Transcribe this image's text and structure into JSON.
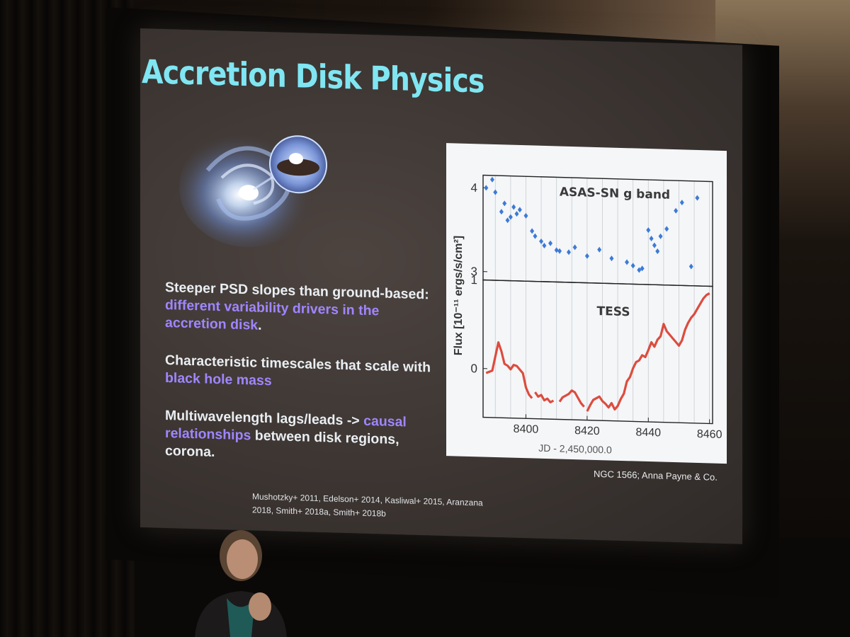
{
  "slide": {
    "title": "Accretion Disk Physics",
    "bullets": [
      {
        "plain": "Steeper PSD slopes than ground-based: ",
        "highlight": "different variability drivers in the accretion disk",
        "after": "."
      },
      {
        "plain": "Characteristic timescales that scale with ",
        "highlight": "black hole mass",
        "after": ""
      },
      {
        "plain": "Multiwavelength lags/leads -> ",
        "highlight": "causal relationships",
        "after": " between disk regions, corona."
      }
    ],
    "references": "Mushotzky+ 2011, Edelson+ 2014, Kasliwal+ 2015, Aranzana 2018, Smith+ 2018a, Smith+ 2018b",
    "credit": "NGC 1566; Anna Payne & Co.",
    "title_color": "#7fe6f2",
    "highlight_color": "#9f86ff"
  },
  "chart_data": [
    {
      "type": "scatter",
      "title": "ASAS-SN g band",
      "ylabel": "Flux [10⁻¹¹ ergs/s/cm²]",
      "y_tick_labels": [
        "4",
        "3"
      ],
      "y_ticks": [
        4,
        3
      ],
      "ylim": [
        2.9,
        4.15
      ],
      "xlim": [
        8386,
        8461
      ],
      "color": "#3d7ad6",
      "x": [
        8387,
        8389,
        8390,
        8392,
        8393,
        8394,
        8395,
        8396,
        8397,
        8398,
        8400,
        8402,
        8403,
        8405,
        8406,
        8408,
        8410,
        8411,
        8414,
        8416,
        8420,
        8424,
        8428,
        8433,
        8435,
        8437,
        8438,
        8440,
        8441,
        8442,
        8443,
        8444,
        8446,
        8449,
        8451,
        8454,
        8456
      ],
      "y": [
        4.0,
        4.1,
        3.95,
        3.72,
        3.82,
        3.62,
        3.66,
        3.78,
        3.7,
        3.75,
        3.68,
        3.5,
        3.44,
        3.38,
        3.33,
        3.36,
        3.28,
        3.27,
        3.26,
        3.32,
        3.22,
        3.3,
        3.2,
        3.16,
        3.12,
        3.07,
        3.09,
        3.55,
        3.45,
        3.37,
        3.3,
        3.48,
        3.57,
        3.79,
        3.89,
        3.13,
        3.95
      ]
    },
    {
      "type": "line",
      "title": "TESS",
      "y_tick_labels": [
        "1",
        "0"
      ],
      "y_ticks": [
        1,
        0
      ],
      "ylim": [
        -0.55,
        1.0
      ],
      "xlim": [
        8386,
        8461
      ],
      "color": "#d93a2a",
      "segments": [
        {
          "x": [
            8387,
            8389,
            8391,
            8392,
            8393,
            8394,
            8395,
            8396,
            8397,
            8398,
            8399,
            8400,
            8401,
            8402
          ],
          "y": [
            -0.05,
            -0.02,
            0.3,
            0.2,
            0.06,
            0.04,
            0.0,
            0.05,
            0.04,
            0.0,
            -0.04,
            -0.2,
            -0.28,
            -0.32
          ]
        },
        {
          "x": [
            8403,
            8404,
            8405,
            8406,
            8407,
            8408,
            8409
          ],
          "y": [
            -0.25,
            -0.3,
            -0.28,
            -0.34,
            -0.32,
            -0.36,
            -0.34
          ]
        },
        {
          "x": [
            8411,
            8412,
            8413,
            8414,
            8415,
            8416,
            8417,
            8418,
            8419
          ],
          "y": [
            -0.35,
            -0.3,
            -0.28,
            -0.26,
            -0.22,
            -0.24,
            -0.3,
            -0.36,
            -0.4
          ]
        },
        {
          "x": [
            8420,
            8421,
            8422,
            8423,
            8424,
            8425,
            8426,
            8427,
            8428,
            8429,
            8430,
            8431,
            8432,
            8433,
            8434,
            8435,
            8436,
            8437,
            8438,
            8439,
            8440,
            8441,
            8442,
            8443,
            8444,
            8445,
            8446,
            8447,
            8448,
            8449,
            8450,
            8451,
            8452,
            8453,
            8454,
            8455,
            8456,
            8457,
            8458,
            8459,
            8460
          ],
          "y": [
            -0.45,
            -0.38,
            -0.32,
            -0.3,
            -0.28,
            -0.33,
            -0.36,
            -0.4,
            -0.35,
            -0.42,
            -0.38,
            -0.3,
            -0.24,
            -0.1,
            -0.05,
            0.05,
            0.12,
            0.14,
            0.2,
            0.18,
            0.26,
            0.35,
            0.3,
            0.38,
            0.42,
            0.56,
            0.48,
            0.44,
            0.4,
            0.36,
            0.32,
            0.38,
            0.5,
            0.58,
            0.64,
            0.68,
            0.74,
            0.8,
            0.86,
            0.9,
            0.92
          ]
        }
      ]
    }
  ],
  "chart_axes": {
    "x_ticks": [
      8400,
      8420,
      8440,
      8460
    ],
    "x_tick_labels": [
      "8400",
      "8420",
      "8440",
      "8460"
    ],
    "xlabel": "JD - 2,450,000.0",
    "ylabel": "Flux [10⁻¹¹ ergs/s/cm²]"
  }
}
